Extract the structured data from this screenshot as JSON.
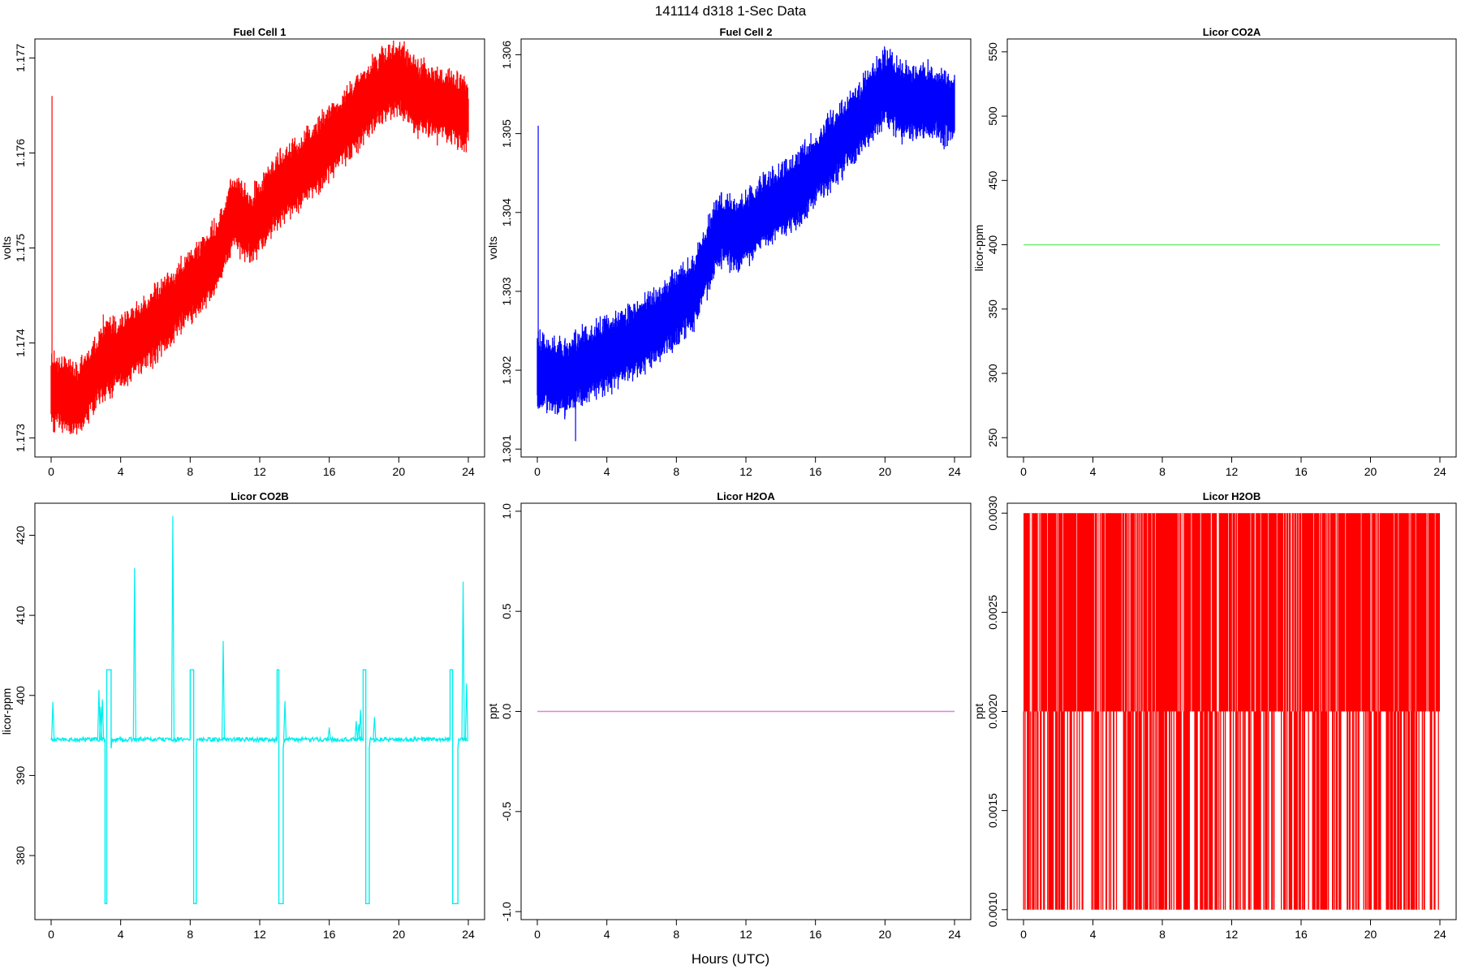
{
  "figure": {
    "title": "141114   d318   1-Sec Data",
    "xlabel": "Hours (UTC)"
  },
  "chart_data": [
    {
      "type": "line",
      "title": "Fuel Cell 1",
      "ylabel": "volts",
      "color": "#ff0000",
      "xlim": [
        0,
        24
      ],
      "ylim": [
        1.1728,
        1.1772
      ],
      "xticks": [
        "0",
        "4",
        "8",
        "12",
        "16",
        "20",
        "24"
      ],
      "yticks": [
        "1.173",
        "1.174",
        "1.175",
        "1.176",
        "1.177"
      ],
      "trend": [
        [
          0,
          1.1735
        ],
        [
          1.5,
          1.1734
        ],
        [
          3,
          1.1738
        ],
        [
          4,
          1.1739
        ],
        [
          6,
          1.1742
        ],
        [
          8,
          1.1746
        ],
        [
          9.5,
          1.1749
        ],
        [
          10.5,
          1.1754
        ],
        [
          11.5,
          1.1752
        ],
        [
          13,
          1.1756
        ],
        [
          15,
          1.1759
        ],
        [
          17,
          1.1763
        ],
        [
          19,
          1.1767
        ],
        [
          20,
          1.1768
        ],
        [
          21,
          1.1766
        ],
        [
          22.5,
          1.1765
        ],
        [
          24,
          1.1764
        ]
      ],
      "band": 0.0007,
      "spikes": [
        [
          0.05,
          1.1766
        ],
        [
          3,
          1.1743
        ]
      ]
    },
    {
      "type": "line",
      "title": "Fuel Cell 2",
      "ylabel": "volts",
      "color": "#0000ff",
      "xlim": [
        0,
        24
      ],
      "ylim": [
        1.3009,
        1.3062
      ],
      "xticks": [
        "0",
        "4",
        "8",
        "12",
        "16",
        "20",
        "24"
      ],
      "yticks": [
        "1.301",
        "1.302",
        "1.303",
        "1.304",
        "1.305",
        "1.306"
      ],
      "trend": [
        [
          0,
          1.302
        ],
        [
          1.5,
          1.3019
        ],
        [
          3,
          1.3021
        ],
        [
          5,
          1.3023
        ],
        [
          7,
          1.3026
        ],
        [
          9,
          1.303
        ],
        [
          10.5,
          1.3038
        ],
        [
          11.5,
          1.3037
        ],
        [
          13,
          1.304
        ],
        [
          15,
          1.3043
        ],
        [
          17,
          1.3048
        ],
        [
          19,
          1.3053
        ],
        [
          20,
          1.3056
        ],
        [
          21,
          1.3054
        ],
        [
          22.5,
          1.3054
        ],
        [
          24,
          1.3053
        ]
      ],
      "band": 0.00085,
      "spikes": [
        [
          0.05,
          1.3051
        ],
        [
          2.2,
          1.3011
        ]
      ]
    },
    {
      "type": "line",
      "title": "Licor CO2A",
      "ylabel": "licor-ppm",
      "color": "#66ee66",
      "xlim": [
        0,
        24
      ],
      "ylim": [
        235,
        560
      ],
      "xticks": [
        "0",
        "4",
        "8",
        "12",
        "16",
        "20",
        "24"
      ],
      "yticks": [
        "250",
        "300",
        "350",
        "400",
        "450",
        "500",
        "550"
      ],
      "x": [
        0,
        24
      ],
      "y": [
        400,
        400
      ]
    },
    {
      "type": "line",
      "title": "Licor CO2B",
      "ylabel": "licor-ppm",
      "color": "#00eeee",
      "xlim": [
        0,
        24
      ],
      "ylim": [
        372,
        424
      ],
      "xticks": [
        "0",
        "4",
        "8",
        "12",
        "16",
        "20",
        "24"
      ],
      "yticks": [
        "380",
        "390",
        "400",
        "410",
        "420"
      ],
      "baseline": 394.5,
      "step_high": 403.2,
      "step_low": 374,
      "events": [
        {
          "up": 3.2,
          "down": 3.1,
          "end": 3.45
        },
        {
          "up": 8.0,
          "down": 8.2,
          "end": 8.35
        },
        {
          "up": 13.0,
          "down": 13.1,
          "end": 13.35
        },
        {
          "up": 17.95,
          "down": 18.1,
          "end": 18.3
        },
        {
          "up": 22.95,
          "down": 23.1,
          "end": 23.4
        }
      ],
      "spikes": [
        [
          0.1,
          399.2
        ],
        [
          2.75,
          400.7
        ],
        [
          2.85,
          398.6
        ],
        [
          2.95,
          399.5
        ],
        [
          4.8,
          415.9
        ],
        [
          7.0,
          422.4
        ],
        [
          9.9,
          406.8
        ],
        [
          13.45,
          399.3
        ],
        [
          16.0,
          396.0
        ],
        [
          17.55,
          396.8
        ],
        [
          17.7,
          396.4
        ],
        [
          17.8,
          398.2
        ],
        [
          18.6,
          397.3
        ],
        [
          23.7,
          414.2
        ],
        [
          23.9,
          401.5
        ]
      ]
    },
    {
      "type": "line",
      "title": "Licor H2OA",
      "ylabel": "ppt",
      "color": "#e080e0",
      "xlim": [
        0,
        24
      ],
      "ylim": [
        -1.04,
        1.04
      ],
      "xticks": [
        "0",
        "4",
        "8",
        "12",
        "16",
        "20",
        "24"
      ],
      "yticks": [
        "-1.0",
        "-0.5",
        "0.0",
        "0.5",
        "1.0"
      ],
      "x": [
        0,
        24
      ],
      "y": [
        0,
        0
      ]
    },
    {
      "type": "line",
      "title": "Licor H2OB",
      "ylabel": "ppt",
      "color": "#ff0000",
      "xlim": [
        0,
        24
      ],
      "ylim": [
        0.00095,
        0.00305
      ],
      "xticks": [
        "0",
        "4",
        "8",
        "12",
        "16",
        "20",
        "24"
      ],
      "yticks": [
        "0.0010",
        "0.0015",
        "0.0020",
        "0.0025",
        "0.0030"
      ],
      "levels": [
        0.001,
        0.002,
        0.003
      ]
    }
  ]
}
